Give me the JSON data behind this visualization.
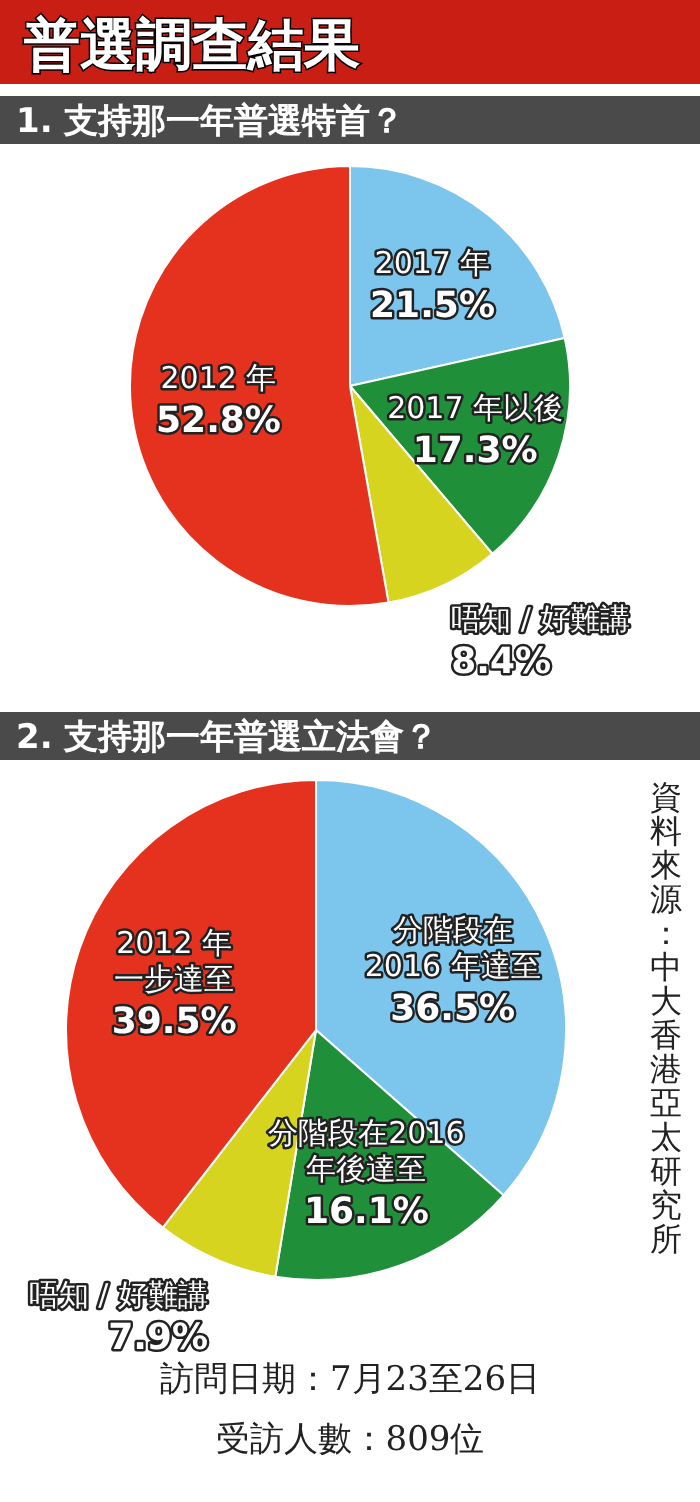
{
  "chart_data": [
    {
      "type": "pie",
      "title": "普選調查結果",
      "subtitle": "1. 支持那一年普選特首？",
      "categories": [
        "2017 年",
        "2017 年以後",
        "唔知 / 好難講",
        "2012 年"
      ],
      "values": [
        21.5,
        17.3,
        8.4,
        52.8
      ],
      "colors": [
        "#7cc6ee",
        "#1f8f3a",
        "#d6d41e",
        "#e5321e"
      ],
      "value_labels": [
        "21.5%",
        "17.3%",
        "8.4%",
        "52.8%"
      ]
    },
    {
      "type": "pie",
      "title": "2. 支持那一年普選立法會？",
      "categories": [
        "分階段在2016 年達至",
        "分階段在2016 年後達至",
        "唔知 / 好難講",
        "2012 年一步達至"
      ],
      "values": [
        36.5,
        16.1,
        7.9,
        39.5
      ],
      "colors": [
        "#7cc6ee",
        "#1f8f3a",
        "#d6d41e",
        "#e5321e"
      ],
      "value_labels": [
        "36.5%",
        "16.1%",
        "7.9%",
        "39.5%"
      ],
      "annotations": [
        "資料來源：中大香港亞太研究所",
        "訪問日期：7月23至26日",
        "受訪人數：809位"
      ]
    }
  ]
}
